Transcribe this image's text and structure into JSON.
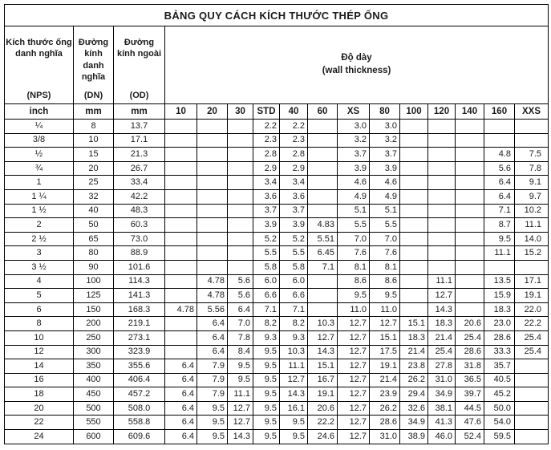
{
  "header": {
    "nps_label": "Kích thước ống danh nghĩa",
    "nps_code": "(NPS)",
    "nps_unit": "inch",
    "dn_label": "Đường kính danh nghĩa",
    "dn_code": "(DN)",
    "dn_unit": "mm",
    "od_label": "Đường kính ngoài",
    "od_code": "(OD)",
    "od_unit": "mm",
    "thickness_label_vi": "Độ dày",
    "thickness_label_en": "(wall thickness)"
  },
  "colors": {
    "border": "#000000",
    "text": "#1b1b1b",
    "background": "#ffffff"
  },
  "chart_data": {
    "type": "table",
    "title": "BẢNG QUY CÁCH KÍCH THƯỚC THÉP ỐNG",
    "column_keys": [
      "nps",
      "dn",
      "od",
      "sch10",
      "sch20",
      "sch30",
      "std",
      "sch40",
      "sch60",
      "xs",
      "sch80",
      "sch100",
      "sch120",
      "sch140",
      "sch160",
      "xxs"
    ],
    "schedule_columns": [
      "10",
      "20",
      "30",
      "STD",
      "40",
      "60",
      "XS",
      "80",
      "100",
      "120",
      "140",
      "160",
      "XXS"
    ],
    "rows": [
      [
        "¼",
        "8",
        "13.7",
        "",
        "",
        "",
        "2.2",
        "2.2",
        "",
        "3.0",
        "3.0",
        "",
        "",
        "",
        "",
        ""
      ],
      [
        "3/8",
        "10",
        "17.1",
        "",
        "",
        "",
        "2.3",
        "2.3",
        "",
        "3.2",
        "3.2",
        "",
        "",
        "",
        "",
        ""
      ],
      [
        "½",
        "15",
        "21.3",
        "",
        "",
        "",
        "2.8",
        "2.8",
        "",
        "3.7",
        "3.7",
        "",
        "",
        "",
        "4.8",
        "7.5"
      ],
      [
        "¾",
        "20",
        "26.7",
        "",
        "",
        "",
        "2.9",
        "2.9",
        "",
        "3.9",
        "3.9",
        "",
        "",
        "",
        "5.6",
        "7.8"
      ],
      [
        "1",
        "25",
        "33.4",
        "",
        "",
        "",
        "3.4",
        "3.4",
        "",
        "4.6",
        "4.6",
        "",
        "",
        "",
        "6.4",
        "9.1"
      ],
      [
        "1 ¼",
        "32",
        "42.2",
        "",
        "",
        "",
        "3.6",
        "3.6",
        "",
        "4.9",
        "4.9",
        "",
        "",
        "",
        "6.4",
        "9.7"
      ],
      [
        "1 ½",
        "40",
        "48.3",
        "",
        "",
        "",
        "3.7",
        "3.7",
        "",
        "5.1",
        "5.1",
        "",
        "",
        "",
        "7.1",
        "10.2"
      ],
      [
        "2",
        "50",
        "60.3",
        "",
        "",
        "",
        "3.9",
        "3.9",
        "4.83",
        "5.5",
        "5.5",
        "",
        "",
        "",
        "8.7",
        "11.1"
      ],
      [
        "2 ½",
        "65",
        "73.0",
        "",
        "",
        "",
        "5.2",
        "5.2",
        "5.51",
        "7.0",
        "7.0",
        "",
        "",
        "",
        "9.5",
        "14.0"
      ],
      [
        "3",
        "80",
        "88.9",
        "",
        "",
        "",
        "5.5",
        "5.5",
        "6.45",
        "7.6",
        "7.6",
        "",
        "",
        "",
        "11.1",
        "15.2"
      ],
      [
        "3 ½",
        "90",
        "101.6",
        "",
        "",
        "",
        "5.8",
        "5.8",
        "7.1",
        "8.1",
        "8.1",
        "",
        "",
        "",
        "",
        ""
      ],
      [
        "4",
        "100",
        "114.3",
        "",
        "4.78",
        "5.6",
        "6.0",
        "6.0",
        "",
        "8.6",
        "8.6",
        "",
        "11.1",
        "",
        "13.5",
        "17.1"
      ],
      [
        "5",
        "125",
        "141.3",
        "",
        "4.78",
        "5.6",
        "6.6",
        "6.6",
        "",
        "9.5",
        "9.5",
        "",
        "12.7",
        "",
        "15.9",
        "19.1"
      ],
      [
        "6",
        "150",
        "168.3",
        "4.78",
        "5.56",
        "6.4",
        "7.1",
        "7.1",
        "",
        "11.0",
        "11.0",
        "",
        "14.3",
        "",
        "18.3",
        "22.0"
      ],
      [
        "8",
        "200",
        "219.1",
        "",
        "6.4",
        "7.0",
        "8.2",
        "8.2",
        "10.3",
        "12.7",
        "12.7",
        "15.1",
        "18.3",
        "20.6",
        "23.0",
        "22.2"
      ],
      [
        "10",
        "250",
        "273.1",
        "",
        "6.4",
        "7.8",
        "9.3",
        "9.3",
        "12.7",
        "12.7",
        "15.1",
        "18.3",
        "21.4",
        "25.4",
        "28.6",
        "25.4"
      ],
      [
        "12",
        "300",
        "323.9",
        "",
        "6.4",
        "8.4",
        "9.5",
        "10.3",
        "14.3",
        "12.7",
        "17.5",
        "21.4",
        "25.4",
        "28.6",
        "33.3",
        "25.4"
      ],
      [
        "14",
        "350",
        "355.6",
        "6.4",
        "7.9",
        "9.5",
        "9.5",
        "11.1",
        "15.1",
        "12.7",
        "19.1",
        "23.8",
        "27.8",
        "31.8",
        "35.7",
        ""
      ],
      [
        "16",
        "400",
        "406.4",
        "6.4",
        "7.9",
        "9.5",
        "9.5",
        "12.7",
        "16.7",
        "12.7",
        "21.4",
        "26.2",
        "31.0",
        "36.5",
        "40.5",
        ""
      ],
      [
        "18",
        "450",
        "457.2",
        "6.4",
        "7.9",
        "11.1",
        "9.5",
        "14.3",
        "19.1",
        "12.7",
        "23.9",
        "29.4",
        "34.9",
        "39.7",
        "45.2",
        ""
      ],
      [
        "20",
        "500",
        "508.0",
        "6.4",
        "9.5",
        "12.7",
        "9.5",
        "16.1",
        "20.6",
        "12.7",
        "26.2",
        "32.6",
        "38.1",
        "44.5",
        "50.0",
        ""
      ],
      [
        "22",
        "550",
        "558.8",
        "6.4",
        "9.5",
        "12.7",
        "9.5",
        "9.5",
        "22.2",
        "12.7",
        "28.6",
        "34.9",
        "41.3",
        "47.6",
        "54.0",
        ""
      ],
      [
        "24",
        "600",
        "609.6",
        "6.4",
        "9.5",
        "14.3",
        "9.5",
        "9.5",
        "24.6",
        "12.7",
        "31.0",
        "38.9",
        "46.0",
        "52.4",
        "59.5",
        ""
      ]
    ]
  }
}
